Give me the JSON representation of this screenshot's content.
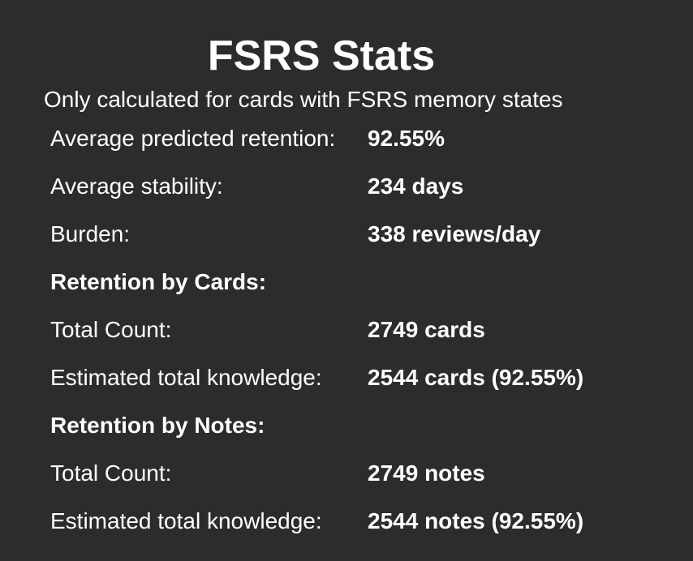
{
  "header": {
    "title": "FSRS Stats",
    "subtitle": "Only calculated for cards with FSRS memory states"
  },
  "stats": {
    "avg_retention": {
      "label": "Average predicted retention:",
      "value": "92.55%"
    },
    "avg_stability": {
      "label": "Average stability:",
      "value": "234 days"
    },
    "burden": {
      "label": "Burden:",
      "value": "338 reviews/day"
    },
    "cards_section": {
      "label": "Retention by Cards:"
    },
    "cards_total": {
      "label": "Total Count:",
      "value": "2749 cards"
    },
    "cards_knowledge": {
      "label": "Estimated total knowledge:",
      "value": "2544 cards (92.55%)"
    },
    "notes_section": {
      "label": "Retention by Notes:"
    },
    "notes_total": {
      "label": "Total Count:",
      "value": "2749 notes"
    },
    "notes_knowledge": {
      "label": "Estimated total knowledge:",
      "value": "2544 notes (92.55%)"
    }
  }
}
